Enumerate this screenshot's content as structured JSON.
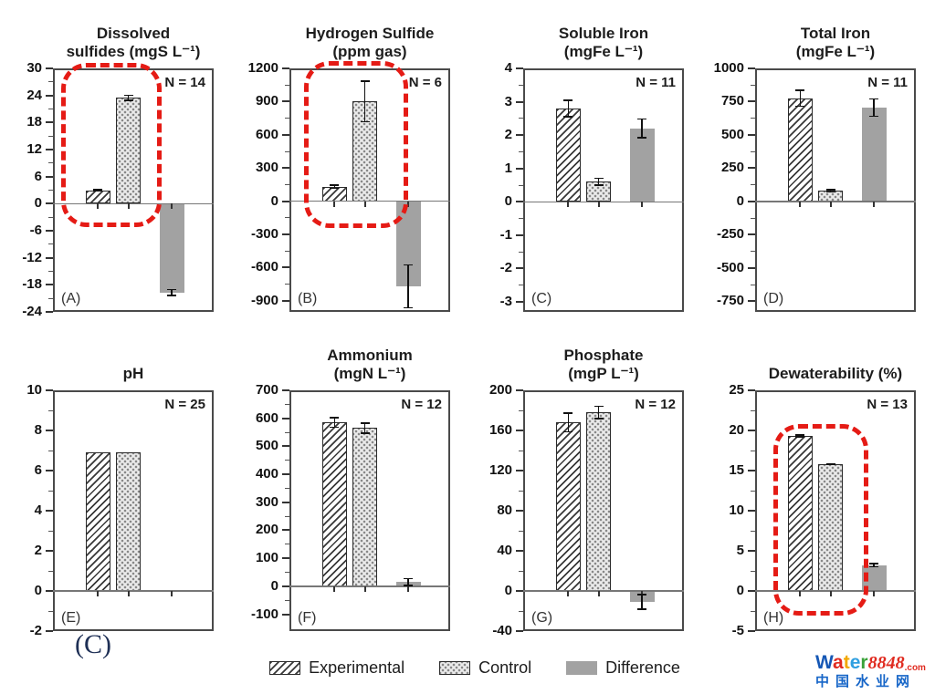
{
  "page": {
    "background": "#ffffff"
  },
  "figure_label": {
    "text": "(C)"
  },
  "legend": {
    "items": [
      {
        "id": "experimental",
        "label": "Experimental",
        "pattern": "diagonal-hatch"
      },
      {
        "id": "control",
        "label": "Control",
        "pattern": "dots"
      },
      {
        "id": "difference",
        "label": "Difference",
        "pattern": "solid-gray",
        "color": "#a2a2a2"
      }
    ]
  },
  "watermark": {
    "brand_letters": [
      {
        "ch": "W",
        "color": "#1557b5"
      },
      {
        "ch": "a",
        "color": "#e02b20"
      },
      {
        "ch": "t",
        "color": "#f2a800"
      },
      {
        "ch": "e",
        "color": "#2f9fe0"
      },
      {
        "ch": "r",
        "color": "#3aa23a"
      }
    ],
    "brand_number": "8848",
    "brand_number_color": "#e02b20",
    "brand_tld": ".com",
    "brand_tld_color": "#e02b20",
    "site_name": "中国水业网",
    "site_name_color": "#1766c8"
  },
  "chart_data": [
    {
      "id": "A",
      "type": "bar",
      "title_lines": [
        "Dissolved",
        "sulfides (mgS L⁻¹)"
      ],
      "n_label": "N = 14",
      "panel_label": "(A)",
      "categories": [
        "Experimental",
        "Control",
        "Difference"
      ],
      "values": [
        3.0,
        23.5,
        -19.7
      ],
      "errors": [
        0.3,
        0.7,
        0.8
      ],
      "ylim": [
        -24,
        30
      ],
      "yticks": [
        30,
        24,
        18,
        12,
        6,
        0,
        -6,
        -12,
        -18,
        -24
      ],
      "highlighted": true
    },
    {
      "id": "B",
      "type": "bar",
      "title_lines": [
        "Hydrogen Sulfide",
        "(ppm gas)"
      ],
      "n_label": "N = 6",
      "panel_label": "(B)",
      "categories": [
        "Experimental",
        "Control",
        "Difference"
      ],
      "values": [
        130,
        900,
        -770
      ],
      "errors": [
        20,
        190,
        200
      ],
      "ylim": [
        -1000,
        1200
      ],
      "yticks": [
        1200,
        900,
        600,
        300,
        0,
        -300,
        -600,
        -900
      ],
      "highlighted": true
    },
    {
      "id": "C",
      "type": "bar",
      "title_lines": [
        "Soluble Iron",
        "(mgFe L⁻¹)"
      ],
      "n_label": "N = 11",
      "panel_label": "(C)",
      "categories": [
        "Experimental",
        "Control",
        "Difference"
      ],
      "values": [
        2.8,
        0.6,
        2.2
      ],
      "errors": [
        0.27,
        0.12,
        0.3
      ],
      "ylim": [
        -3.3,
        4
      ],
      "yticks": [
        4,
        3,
        2,
        1,
        0,
        -1,
        -2,
        -3
      ],
      "highlighted": false
    },
    {
      "id": "D",
      "type": "bar",
      "title_lines": [
        "Total Iron",
        "(mgFe L⁻¹)"
      ],
      "n_label": "N = 11",
      "panel_label": "(D)",
      "categories": [
        "Experimental",
        "Control",
        "Difference"
      ],
      "values": [
        775,
        80,
        705
      ],
      "errors": [
        65,
        15,
        70
      ],
      "ylim": [
        -830,
        1000
      ],
      "yticks": [
        1000,
        750,
        500,
        250,
        0,
        -250,
        -500,
        -750
      ],
      "highlighted": false
    },
    {
      "id": "E",
      "type": "bar",
      "title_lines": [
        "pH"
      ],
      "n_label": "N = 25",
      "panel_label": "(E)",
      "categories": [
        "Experimental",
        "Control",
        "Difference"
      ],
      "values": [
        6.9,
        6.9,
        0
      ],
      "errors": [
        0,
        0,
        0
      ],
      "ylim": [
        -2,
        10
      ],
      "yticks": [
        10,
        8,
        6,
        4,
        2,
        0,
        -2
      ],
      "highlighted": false
    },
    {
      "id": "F",
      "type": "bar",
      "title_lines": [
        "Ammonium",
        "(mgN L⁻¹)"
      ],
      "n_label": "N = 12",
      "panel_label": "(F)",
      "categories": [
        "Experimental",
        "Control",
        "Difference"
      ],
      "values": [
        585,
        565,
        15
      ],
      "errors": [
        20,
        20,
        15
      ],
      "ylim": [
        -160,
        700
      ],
      "yticks": [
        700,
        600,
        500,
        400,
        300,
        200,
        100,
        0,
        -100
      ],
      "highlighted": false
    },
    {
      "id": "G",
      "type": "bar",
      "title_lines": [
        "Phosphate",
        "(mgP L⁻¹)"
      ],
      "n_label": "N = 12",
      "panel_label": "(G)",
      "categories": [
        "Experimental",
        "Control",
        "Difference"
      ],
      "values": [
        168,
        178,
        -11
      ],
      "errors": [
        10,
        7,
        8
      ],
      "ylim": [
        -40,
        200
      ],
      "yticks": [
        200,
        160,
        120,
        80,
        40,
        0,
        -40
      ],
      "highlighted": false
    },
    {
      "id": "H",
      "type": "bar",
      "title_lines": [
        "Dewaterability (%)"
      ],
      "n_label": "N = 13",
      "panel_label": "(H)",
      "categories": [
        "Experimental",
        "Control",
        "Difference"
      ],
      "values": [
        19.3,
        15.8,
        3.2
      ],
      "errors": [
        0.2,
        0.15,
        0.3
      ],
      "ylim": [
        -5,
        25
      ],
      "yticks": [
        25,
        20,
        15,
        10,
        5,
        0,
        -5
      ],
      "highlighted": true
    }
  ]
}
